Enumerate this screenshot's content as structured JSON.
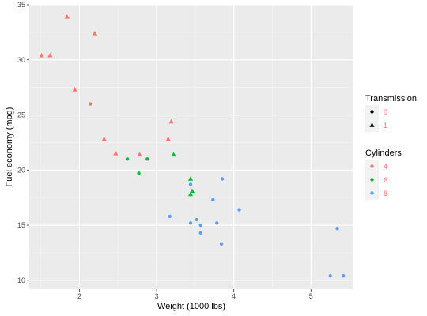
{
  "chart_data": {
    "type": "scatter",
    "xlabel": "Weight (1000 lbs)",
    "ylabel": "Fuel economy (mpg)",
    "xlim": [
      1.35,
      5.55
    ],
    "ylim": [
      9.2,
      35.0
    ],
    "x_ticks": [
      2,
      3,
      4,
      5
    ],
    "y_ticks": [
      10,
      15,
      20,
      25,
      30,
      35
    ],
    "grid": true,
    "legend_placement": "right",
    "legends": [
      {
        "title": "Transmission",
        "kind": "shape",
        "entries": [
          {
            "label": "0",
            "shape": "circle"
          },
          {
            "label": "1",
            "shape": "triangle"
          }
        ]
      },
      {
        "title": "Cylinders",
        "kind": "color",
        "entries": [
          {
            "label": "4",
            "color": "#f8766d"
          },
          {
            "label": "6",
            "color": "#00ba38"
          },
          {
            "label": "8",
            "color": "#619cff"
          }
        ]
      }
    ],
    "points": [
      {
        "x": 1.51,
        "y": 30.4,
        "cyl": "4",
        "am": "1"
      },
      {
        "x": 1.62,
        "y": 30.4,
        "cyl": "4",
        "am": "1"
      },
      {
        "x": 1.84,
        "y": 33.9,
        "cyl": "4",
        "am": "1"
      },
      {
        "x": 1.94,
        "y": 27.3,
        "cyl": "4",
        "am": "1"
      },
      {
        "x": 2.14,
        "y": 26.0,
        "cyl": "4",
        "am": "0"
      },
      {
        "x": 2.2,
        "y": 32.4,
        "cyl": "4",
        "am": "1"
      },
      {
        "x": 2.32,
        "y": 22.8,
        "cyl": "4",
        "am": "1"
      },
      {
        "x": 2.47,
        "y": 21.5,
        "cyl": "4",
        "am": "1"
      },
      {
        "x": 2.78,
        "y": 21.4,
        "cyl": "4",
        "am": "1"
      },
      {
        "x": 3.15,
        "y": 22.8,
        "cyl": "4",
        "am": "1"
      },
      {
        "x": 3.19,
        "y": 24.4,
        "cyl": "4",
        "am": "1"
      },
      {
        "x": 2.62,
        "y": 21.0,
        "cyl": "6",
        "am": "0"
      },
      {
        "x": 2.77,
        "y": 19.7,
        "cyl": "6",
        "am": "0"
      },
      {
        "x": 2.88,
        "y": 21.0,
        "cyl": "6",
        "am": "0"
      },
      {
        "x": 3.22,
        "y": 21.4,
        "cyl": "6",
        "am": "1"
      },
      {
        "x": 3.44,
        "y": 19.2,
        "cyl": "6",
        "am": "1"
      },
      {
        "x": 3.44,
        "y": 17.8,
        "cyl": "6",
        "am": "1"
      },
      {
        "x": 3.46,
        "y": 18.1,
        "cyl": "6",
        "am": "1"
      },
      {
        "x": 3.17,
        "y": 15.8,
        "cyl": "8",
        "am": "0"
      },
      {
        "x": 3.44,
        "y": 18.7,
        "cyl": "8",
        "am": "0"
      },
      {
        "x": 3.44,
        "y": 15.2,
        "cyl": "8",
        "am": "0"
      },
      {
        "x": 3.52,
        "y": 15.5,
        "cyl": "8",
        "am": "0"
      },
      {
        "x": 3.57,
        "y": 15.0,
        "cyl": "8",
        "am": "0"
      },
      {
        "x": 3.57,
        "y": 14.3,
        "cyl": "8",
        "am": "0"
      },
      {
        "x": 3.73,
        "y": 17.3,
        "cyl": "8",
        "am": "0"
      },
      {
        "x": 3.78,
        "y": 15.2,
        "cyl": "8",
        "am": "0"
      },
      {
        "x": 3.84,
        "y": 13.3,
        "cyl": "8",
        "am": "0"
      },
      {
        "x": 3.85,
        "y": 19.2,
        "cyl": "8",
        "am": "0"
      },
      {
        "x": 4.07,
        "y": 16.4,
        "cyl": "8",
        "am": "0"
      },
      {
        "x": 5.25,
        "y": 10.4,
        "cyl": "8",
        "am": "0"
      },
      {
        "x": 5.34,
        "y": 14.7,
        "cyl": "8",
        "am": "0"
      },
      {
        "x": 5.42,
        "y": 10.4,
        "cyl": "8",
        "am": "0"
      }
    ]
  }
}
